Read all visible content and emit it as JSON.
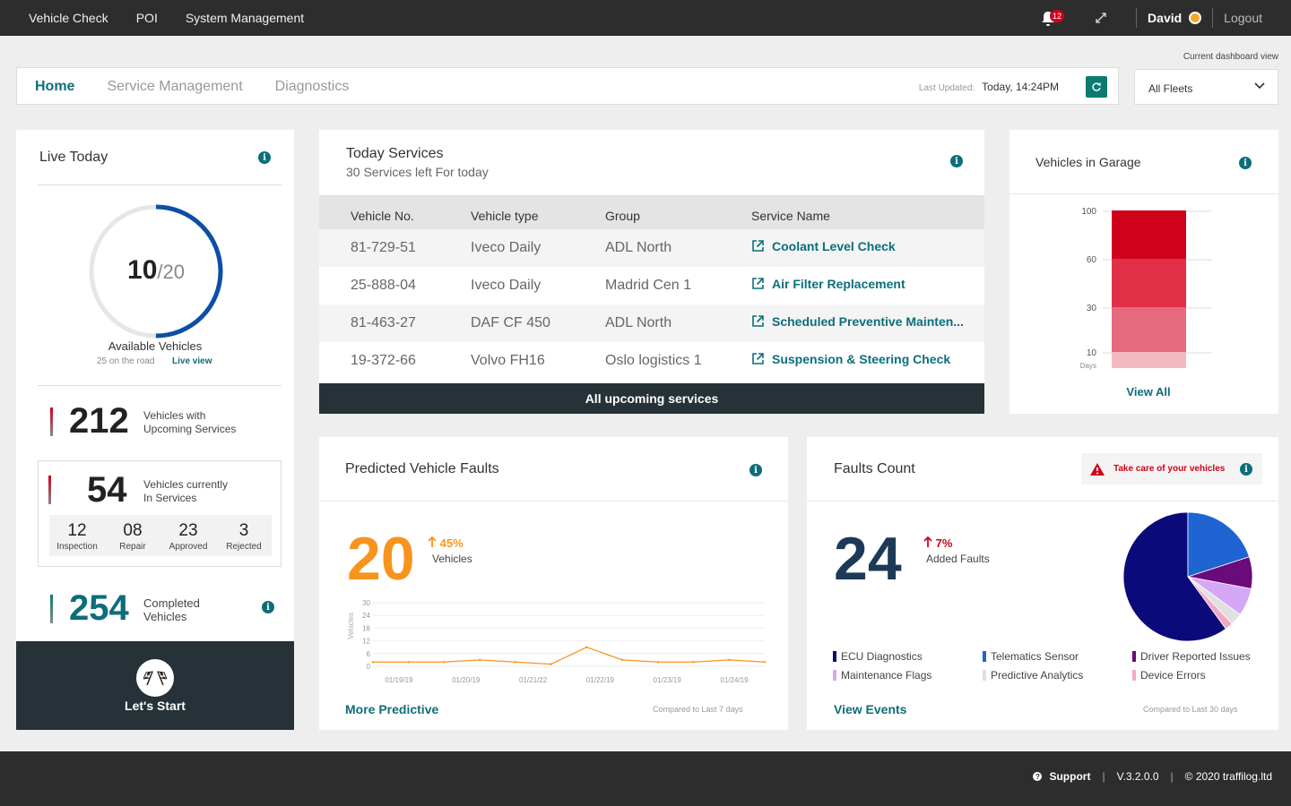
{
  "topnav": {
    "items": [
      "Vehicle Check",
      "POI",
      "System Management"
    ],
    "notifications": "12",
    "user": "David",
    "logout": "Logout"
  },
  "tabs": {
    "items": [
      "Home",
      "Service Management",
      "Diagnostics"
    ],
    "active": "Home",
    "last_updated_label": "Last Updated:",
    "last_updated_value": "Today, 14:24PM"
  },
  "dashboard_view": {
    "label": "Current dashboard view",
    "selected": "All Fleets"
  },
  "live_today": {
    "title": "Live Today",
    "available": "10",
    "total": "/20",
    "available_fraction": 0.5,
    "available_label": "Available Vehicles",
    "on_road": "25 on the road",
    "live_view": "Live view",
    "upcoming_count": "212",
    "upcoming_label_1": "Vehicles with",
    "upcoming_label_2": "Upcoming Services",
    "in_service_count": "54",
    "in_service_label_1": "Vehicles currently",
    "in_service_label_2": "In Services",
    "sub_stats": [
      {
        "value": "12",
        "label": "Inspection"
      },
      {
        "value": "08",
        "label": "Repair"
      },
      {
        "value": "23",
        "label": "Approved"
      },
      {
        "value": "3",
        "label": "Rejected"
      }
    ],
    "completed_count": "254",
    "completed_label_1": "Completed",
    "completed_label_2": "Vehicles",
    "start_label": "Let's Start"
  },
  "services": {
    "title": "Today Services",
    "subtitle": "30 Services left For today",
    "columns": [
      "Vehicle No.",
      "Vehicle type",
      "Group",
      "Service Name"
    ],
    "rows": [
      {
        "vehicle": "81-729-51",
        "type": "Iveco Daily",
        "group": "ADL North",
        "service": "Coolant Level Check"
      },
      {
        "vehicle": "25-888-04",
        "type": "Iveco Daily",
        "group": "Madrid Cen 1",
        "service": "Air Filter Replacement"
      },
      {
        "vehicle": "81-463-27",
        "type": "DAF CF 450",
        "group": "ADL North",
        "service": "Scheduled Preventive Mainten..."
      },
      {
        "vehicle": "19-372-66",
        "type": "Volvo FH16",
        "group": "Oslo logistics 1",
        "service": "Suspension & Steering Check"
      }
    ],
    "all_upcoming": "All upcoming services"
  },
  "garage": {
    "title": "Vehicles in Garage",
    "view_all": "View All",
    "chart_data": {
      "type": "bar",
      "stacked": true,
      "categories": [
        "10",
        "30",
        "60",
        "100"
      ],
      "ytick_labels": [
        "100",
        "60",
        "30",
        "10"
      ],
      "unit_label": "Days",
      "segment_colors": [
        "#f4b8c0",
        "#e66a7d",
        "#e03048",
        "#d0021b"
      ]
    }
  },
  "predicted": {
    "title": "Predicted Vehicle Faults",
    "value": "20",
    "change": "45%",
    "unit": "Vehicles",
    "more": "More Predictive",
    "compared": "Compared to Last 7 days",
    "chart_data": {
      "type": "line",
      "ylabel": "Vehicles",
      "ylim": [
        0,
        30
      ],
      "yticks": [
        "30",
        "24",
        "18",
        "12",
        "6",
        "0"
      ],
      "xticks": [
        "01/19/19",
        "01/20/19",
        "01/21/22",
        "01/22/19",
        "01/23/19",
        "01/24/19"
      ],
      "values": [
        2,
        2,
        2,
        3,
        2,
        1,
        9,
        3,
        2,
        2,
        3,
        2
      ],
      "color": "#f7941d"
    }
  },
  "faults": {
    "title": "Faults Count",
    "alert": "Take care of your vehicles",
    "value": "24",
    "change": "7%",
    "unit": "Added Faults",
    "view_events": "View Events",
    "compared": "Compared to Last 30 days",
    "chart_data": {
      "type": "pie",
      "labels": [
        "ECU Diagnostics",
        "Telematics Sensor",
        "Driver Reported Issues",
        "Maintenance Flags",
        "Predictive Analytics",
        "Device Errors"
      ],
      "values": [
        60,
        20,
        8,
        7,
        3,
        2
      ],
      "colors": [
        "#0a0a7a",
        "#1e64d2",
        "#6b0a7a",
        "#d4a8f5",
        "#e0e0e0",
        "#f4a8c8"
      ]
    }
  },
  "footer": {
    "support": "Support",
    "version": "V.3.2.0.0",
    "copyright": "© 2020 traffilog.ltd"
  }
}
